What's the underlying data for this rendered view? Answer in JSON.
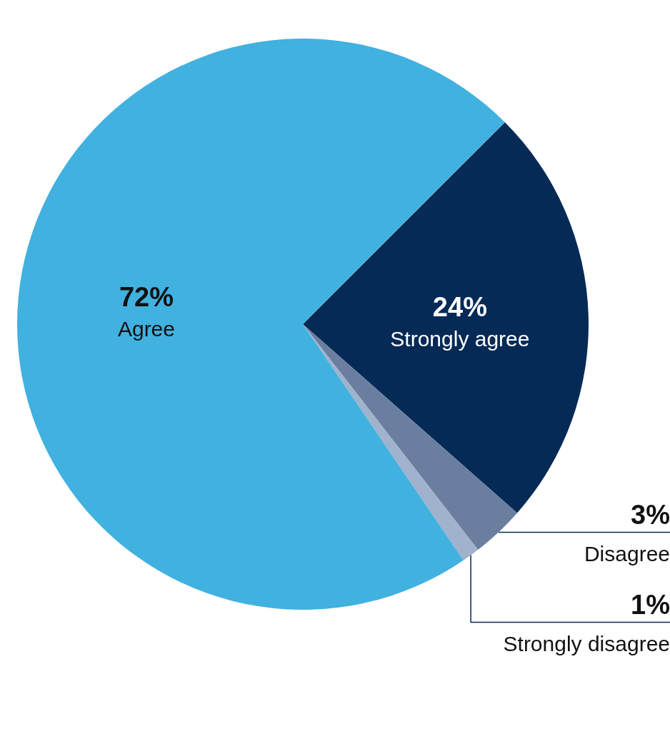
{
  "chart_data": {
    "type": "pie",
    "categories": [
      "Strongly agree",
      "Disagree",
      "Strongly disagree",
      "Agree"
    ],
    "values": [
      24,
      3,
      1,
      72
    ],
    "colors": [
      "#062a56",
      "#6a7fa0",
      "#a0b2cc",
      "#41b1e0"
    ],
    "value_labels": [
      "24%",
      "3%",
      "1%",
      "72%"
    ]
  }
}
